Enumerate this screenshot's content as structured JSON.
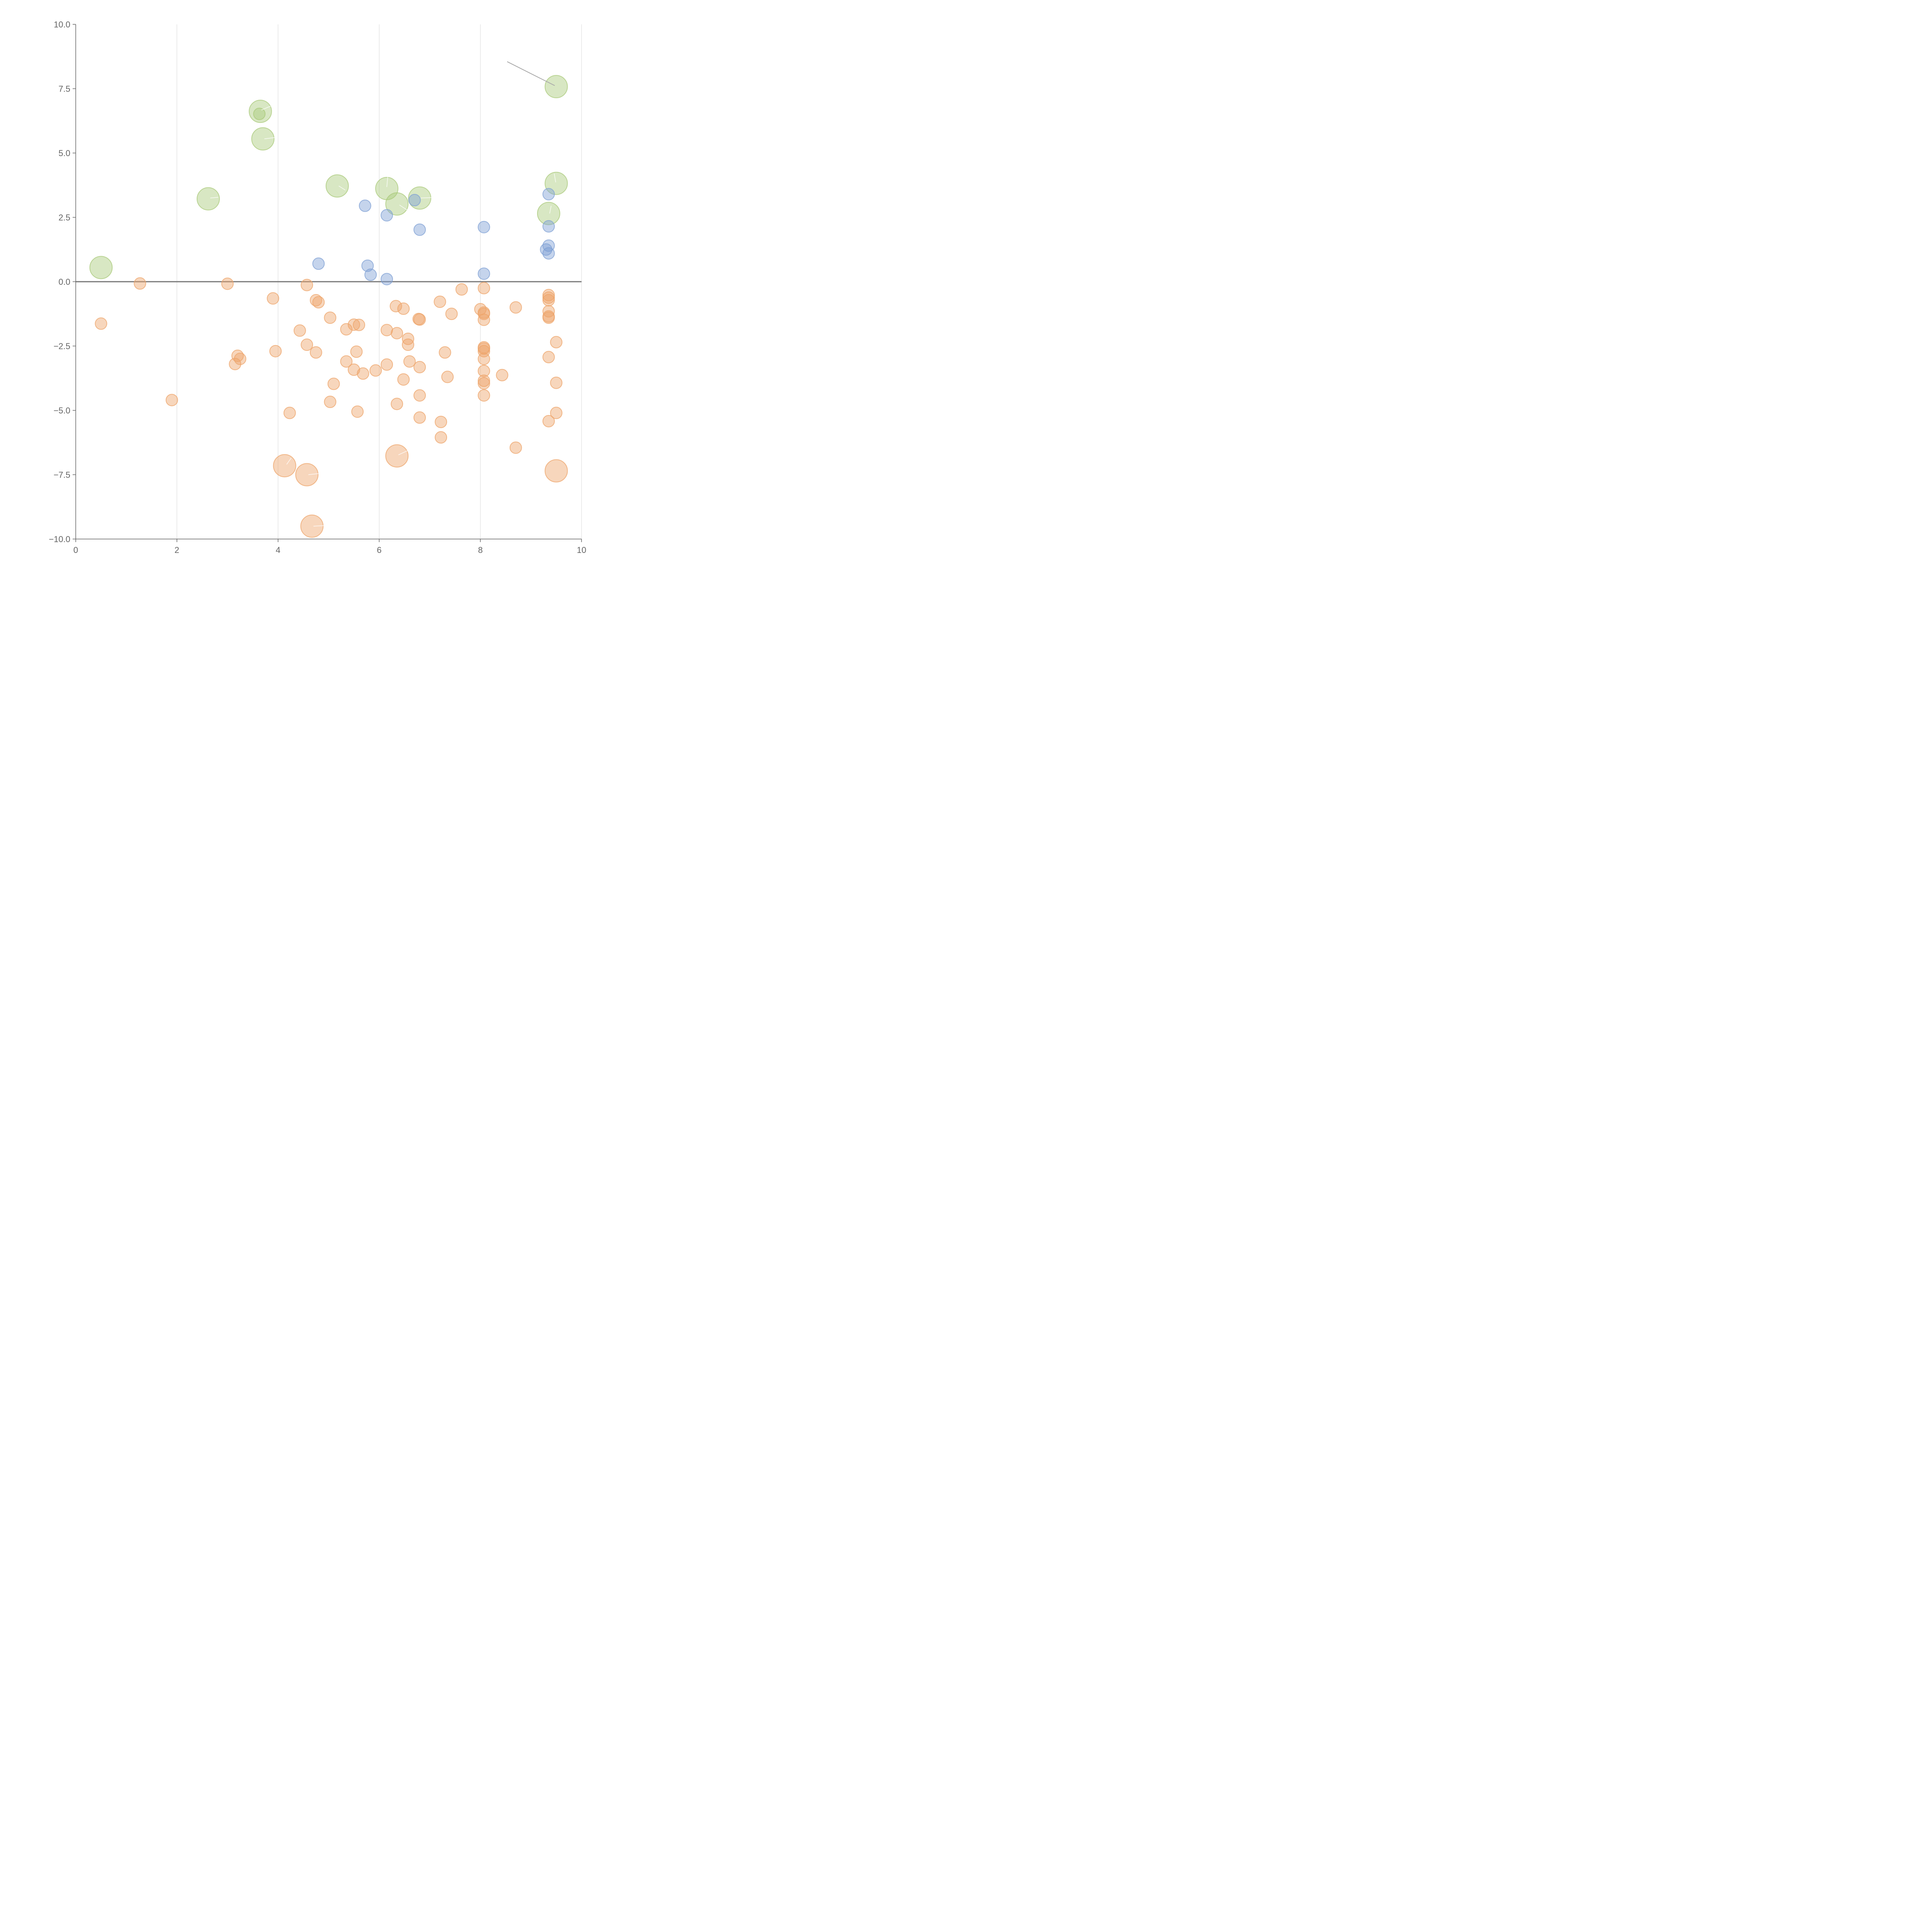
{
  "chart_data": {
    "type": "scatter",
    "title": "",
    "xlabel": "",
    "ylabel": "",
    "xlim": [
      0,
      10
    ],
    "ylim": [
      -10,
      10
    ],
    "x_ticks": [
      0,
      2,
      4,
      6,
      8,
      10
    ],
    "y_ticks": [
      -10,
      -7.5,
      -5,
      -2.5,
      0,
      2.5,
      5,
      7.5,
      10
    ],
    "x_tick_labels": [
      "0",
      "2",
      "4",
      "6",
      "8",
      "10"
    ],
    "y_tick_labels": [
      "−10.0",
      "−7.5",
      "−5.0",
      "−2.5",
      "0.0",
      "2.5",
      "5.0",
      "7.5",
      "10.0"
    ],
    "grid": "vertical",
    "reference_line_y": 0,
    "series": [
      {
        "name": "green",
        "color": "#a9c97a",
        "size": "large",
        "points": [
          [
            0.5,
            0.55
          ],
          [
            2.62,
            3.22
          ],
          [
            3.65,
            6.62
          ],
          [
            3.7,
            5.55
          ],
          [
            5.17,
            3.72
          ],
          [
            6.15,
            3.62
          ],
          [
            6.35,
            3.02
          ],
          [
            6.8,
            3.25
          ],
          [
            9.5,
            7.58
          ],
          [
            9.5,
            3.82
          ],
          [
            9.35,
            2.65
          ]
        ]
      },
      {
        "name": "green-small",
        "color": "#a9c97a",
        "size": "small",
        "points": [
          [
            3.63,
            6.52
          ]
        ]
      },
      {
        "name": "blue",
        "color": "#7fa0d4",
        "size": "small",
        "points": [
          [
            4.8,
            0.7
          ],
          [
            5.72,
            2.95
          ],
          [
            5.77,
            0.62
          ],
          [
            5.83,
            0.27
          ],
          [
            6.15,
            2.58
          ],
          [
            6.15,
            0.1
          ],
          [
            6.7,
            3.17
          ],
          [
            6.8,
            2.02
          ],
          [
            8.07,
            2.12
          ],
          [
            8.07,
            0.31
          ],
          [
            9.35,
            3.4
          ],
          [
            9.35,
            2.15
          ],
          [
            9.35,
            1.4
          ],
          [
            9.3,
            1.25
          ],
          [
            9.35,
            1.1
          ]
        ]
      },
      {
        "name": "orange",
        "color": "#eda46a",
        "size": "small",
        "points": [
          [
            0.5,
            -1.63
          ],
          [
            1.27,
            -0.07
          ],
          [
            1.9,
            -4.6
          ],
          [
            3.0,
            -0.08
          ],
          [
            3.15,
            -3.2
          ],
          [
            3.2,
            -2.88
          ],
          [
            3.25,
            -3.0
          ],
          [
            3.9,
            -0.65
          ],
          [
            3.95,
            -2.7
          ],
          [
            4.23,
            -5.1
          ],
          [
            4.43,
            -1.9
          ],
          [
            4.57,
            -0.13
          ],
          [
            4.57,
            -2.45
          ],
          [
            4.75,
            -0.72
          ],
          [
            4.75,
            -2.75
          ],
          [
            4.8,
            -0.8
          ],
          [
            5.03,
            -1.4
          ],
          [
            5.03,
            -4.67
          ],
          [
            5.1,
            -3.97
          ],
          [
            5.35,
            -1.85
          ],
          [
            5.35,
            -3.1
          ],
          [
            5.5,
            -1.67
          ],
          [
            5.5,
            -3.42
          ],
          [
            5.55,
            -2.72
          ],
          [
            5.57,
            -5.05
          ],
          [
            5.6,
            -1.68
          ],
          [
            5.68,
            -3.57
          ],
          [
            5.93,
            -3.45
          ],
          [
            6.15,
            -1.88
          ],
          [
            6.15,
            -3.22
          ],
          [
            6.33,
            -0.95
          ],
          [
            6.35,
            -2.0
          ],
          [
            6.35,
            -4.75
          ],
          [
            6.48,
            -1.05
          ],
          [
            6.48,
            -3.8
          ],
          [
            6.57,
            -2.22
          ],
          [
            6.57,
            -2.45
          ],
          [
            6.6,
            -3.1
          ],
          [
            6.78,
            -1.45
          ],
          [
            6.8,
            -1.47
          ],
          [
            6.8,
            -3.32
          ],
          [
            6.8,
            -4.42
          ],
          [
            6.8,
            -5.28
          ],
          [
            7.2,
            -0.78
          ],
          [
            7.22,
            -5.45
          ],
          [
            7.22,
            -6.05
          ],
          [
            7.3,
            -2.75
          ],
          [
            7.35,
            -3.7
          ],
          [
            7.43,
            -1.25
          ],
          [
            7.63,
            -0.3
          ],
          [
            8.0,
            -1.07
          ],
          [
            8.07,
            -0.25
          ],
          [
            8.07,
            -1.2
          ],
          [
            8.07,
            -1.25
          ],
          [
            8.07,
            -1.48
          ],
          [
            8.07,
            -2.55
          ],
          [
            8.07,
            -2.6
          ],
          [
            8.07,
            -2.7
          ],
          [
            8.07,
            -3.0
          ],
          [
            8.07,
            -3.47
          ],
          [
            8.07,
            -3.85
          ],
          [
            8.07,
            -3.95
          ],
          [
            8.07,
            -4.42
          ],
          [
            8.43,
            -3.63
          ],
          [
            8.7,
            -1.0
          ],
          [
            8.7,
            -6.45
          ],
          [
            9.35,
            -0.52
          ],
          [
            9.35,
            -0.62
          ],
          [
            9.35,
            -0.72
          ],
          [
            9.35,
            -1.15
          ],
          [
            9.35,
            -1.35
          ],
          [
            9.35,
            -1.4
          ],
          [
            9.35,
            -2.93
          ],
          [
            9.35,
            -5.42
          ],
          [
            9.5,
            -2.35
          ],
          [
            9.5,
            -3.93
          ],
          [
            9.5,
            -5.1
          ]
        ]
      },
      {
        "name": "orange-large",
        "color": "#eda46a",
        "size": "large",
        "points": [
          [
            4.13,
            -7.15
          ],
          [
            4.57,
            -7.5
          ],
          [
            4.67,
            -9.5
          ],
          [
            6.35,
            -6.77
          ],
          [
            9.5,
            -7.35
          ]
        ]
      }
    ]
  }
}
